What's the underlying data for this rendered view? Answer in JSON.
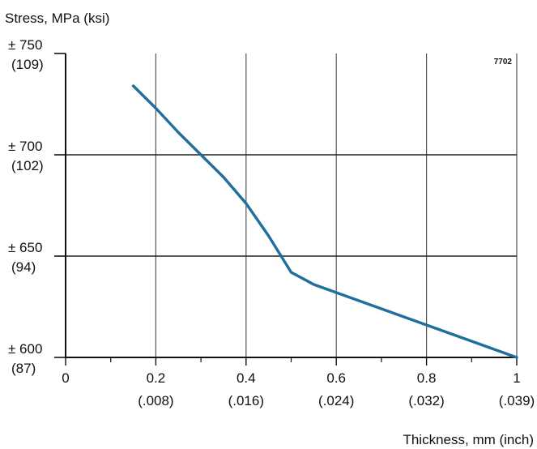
{
  "chart_data": {
    "type": "line",
    "ylabel": "Stress, MPa (ksi)",
    "xlabel": "Thickness, mm (inch)",
    "code": "7702",
    "xlim": [
      0,
      1
    ],
    "ylim": [
      600,
      750
    ],
    "grid": true,
    "x_ticks": [
      {
        "value": 0,
        "label": "0",
        "sub": ""
      },
      {
        "value": 0.2,
        "label": "0.2",
        "sub": "(.008)"
      },
      {
        "value": 0.4,
        "label": "0.4",
        "sub": "(.016)"
      },
      {
        "value": 0.6,
        "label": "0.6",
        "sub": "(.024)"
      },
      {
        "value": 0.8,
        "label": "0.8",
        "sub": "(.032)"
      },
      {
        "value": 1,
        "label": "1",
        "sub": "(.039)"
      }
    ],
    "y_ticks": [
      {
        "value": 750,
        "label": "± 750",
        "sub": "(109)"
      },
      {
        "value": 700,
        "label": "± 700",
        "sub": "(102)"
      },
      {
        "value": 650,
        "label": "± 650",
        "sub": "(94)"
      },
      {
        "value": 600,
        "label": "± 600",
        "sub": "(87)"
      }
    ],
    "minor_x_ticks": [
      0.1,
      0.3,
      0.5,
      0.7,
      0.9
    ],
    "series": [
      {
        "color": "#1f6e9c",
        "x": [
          0.15,
          0.2,
          0.25,
          0.3,
          0.35,
          0.4,
          0.45,
          0.5,
          0.55,
          0.6,
          0.7,
          0.8,
          0.9,
          1.0
        ],
        "y": [
          734,
          723,
          711,
          700,
          689,
          676,
          660,
          642,
          636,
          632,
          624,
          616,
          608,
          600
        ]
      }
    ]
  }
}
